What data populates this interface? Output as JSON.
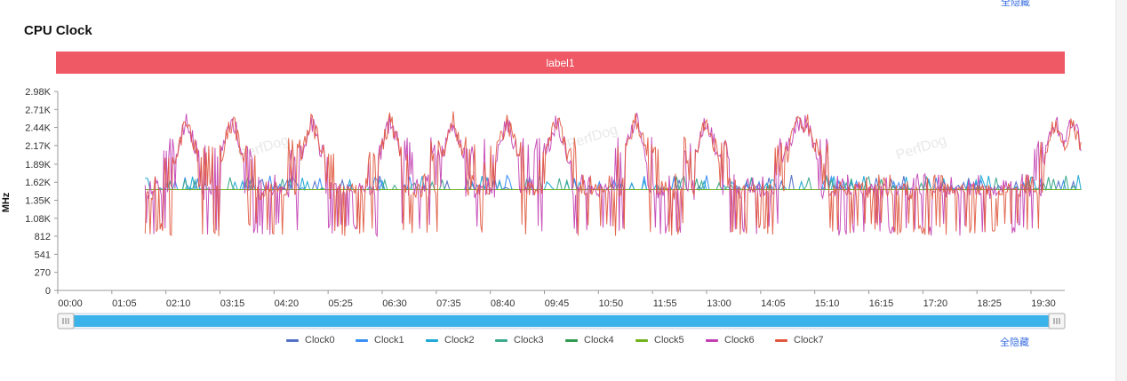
{
  "page": {
    "top_link": "全隐藏",
    "hide_all_label": "全隐藏"
  },
  "chart_data": {
    "type": "line",
    "title": "CPU Clock",
    "label_band": "label1",
    "ylabel": "MHz",
    "ylim": [
      0,
      2980
    ],
    "yticks": [
      "0",
      "270",
      "541",
      "812",
      "1.08K",
      "1.35K",
      "1.62K",
      "1.89K",
      "2.17K",
      "2.44K",
      "2.71K",
      "2.98K"
    ],
    "xlabels": [
      "00:00",
      "01:05",
      "02:10",
      "03:15",
      "04:20",
      "05:25",
      "06:30",
      "07:35",
      "08:40",
      "09:45",
      "10:50",
      "11:55",
      "13:00",
      "14:05",
      "15:10",
      "16:15",
      "17:20",
      "18:25",
      "19:30"
    ],
    "x_unit_note": "time mm:ss, ticks every 65 s, visible range 00:00–~20:30",
    "data_start": "01:45",
    "data_end": "20:30",
    "baseline_mhz": 1510,
    "low_mhz": 812,
    "spike_mhz": 2710,
    "spike_times": [
      "02:35",
      "03:30",
      "05:05",
      "06:40",
      "07:55",
      "09:00",
      "10:00",
      "11:35",
      "13:00",
      "14:50",
      "15:00",
      "20:00",
      "20:20"
    ],
    "watermark": "PerfDog",
    "grid": false,
    "legend_position": "bottom",
    "series": [
      {
        "name": "Clock0",
        "color": "#5470c6"
      },
      {
        "name": "Clock1",
        "color": "#3b8ff5"
      },
      {
        "name": "Clock2",
        "color": "#1fa9d6"
      },
      {
        "name": "Clock3",
        "color": "#3ba98c"
      },
      {
        "name": "Clock4",
        "color": "#2e9c4e"
      },
      {
        "name": "Clock5",
        "color": "#73b21f"
      },
      {
        "name": "Clock6",
        "color": "#c23fb3"
      },
      {
        "name": "Clock7",
        "color": "#e0573d"
      }
    ]
  }
}
